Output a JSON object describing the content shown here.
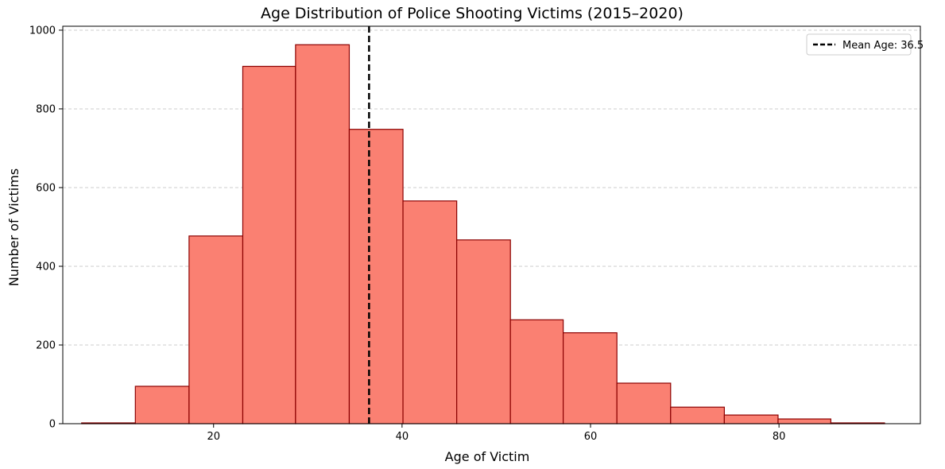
{
  "chart_data": {
    "type": "bar",
    "title": "Age Distribution of Police Shooting Victims (2015–2020)",
    "xlabel": "Age of Victim",
    "ylabel": "Number of Victims",
    "xlim": [
      4,
      95
    ],
    "ylim": [
      0,
      1010
    ],
    "x_ticks": [
      20,
      40,
      60,
      80
    ],
    "y_ticks": [
      0,
      200,
      400,
      600,
      800,
      1000
    ],
    "bins": [
      {
        "start": 6.0,
        "end": 11.7,
        "count": 2
      },
      {
        "start": 11.7,
        "end": 17.4,
        "count": 95
      },
      {
        "start": 17.4,
        "end": 23.1,
        "count": 477
      },
      {
        "start": 23.1,
        "end": 28.7,
        "count": 908
      },
      {
        "start": 28.7,
        "end": 34.4,
        "count": 963
      },
      {
        "start": 34.4,
        "end": 40.1,
        "count": 748
      },
      {
        "start": 40.1,
        "end": 45.8,
        "count": 566
      },
      {
        "start": 45.8,
        "end": 51.5,
        "count": 467
      },
      {
        "start": 51.5,
        "end": 57.1,
        "count": 264
      },
      {
        "start": 57.1,
        "end": 62.8,
        "count": 231
      },
      {
        "start": 62.8,
        "end": 68.5,
        "count": 103
      },
      {
        "start": 68.5,
        "end": 74.2,
        "count": 42
      },
      {
        "start": 74.2,
        "end": 79.9,
        "count": 22
      },
      {
        "start": 79.9,
        "end": 85.5,
        "count": 12
      },
      {
        "start": 85.5,
        "end": 91.2,
        "count": 2
      }
    ],
    "mean_line": {
      "value": 36.5,
      "label": "Mean Age: 36.5"
    },
    "grid": {
      "y": true,
      "x": false
    },
    "legend_position": "top-right",
    "colors": {
      "bar_fill": "#fa8072",
      "bar_edge": "#8b0000",
      "mean_line": "#000000",
      "grid": "#cccccc"
    }
  }
}
